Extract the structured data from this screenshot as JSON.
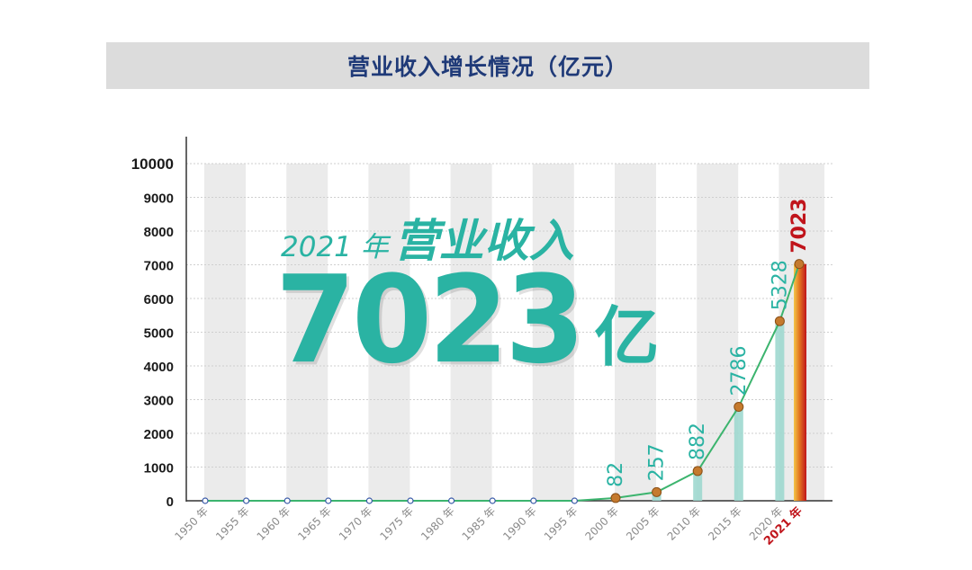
{
  "title": "营业收入增长情况（亿元）",
  "headline": {
    "year_text": "2021 年",
    "label": "营业收入",
    "value": "7023",
    "unit": "亿"
  },
  "colors": {
    "accent": "#2ab3a3",
    "title_bg": "#dcdcdc",
    "title_text": "#1f3a78",
    "highlight": "#c0141b",
    "line": "#3cb46e",
    "marker": "#c57a2e"
  },
  "chart_data": {
    "type": "line",
    "title": "营业收入增长情况（亿元）",
    "xlabel": "",
    "ylabel": "",
    "categories": [
      "1950 年",
      "1955 年",
      "1960 年",
      "1965 年",
      "1970 年",
      "1975 年",
      "1980 年",
      "1985 年",
      "1990 年",
      "1995 年",
      "2000 年",
      "2005 年",
      "2010 年",
      "2015 年",
      "2020 年",
      "2021 年"
    ],
    "values": [
      0,
      0,
      0,
      0,
      0,
      0,
      0,
      0,
      0,
      0,
      82,
      257,
      882,
      2786,
      5328,
      7023
    ],
    "labels": [
      "",
      "",
      "",
      "",
      "",
      "",
      "",
      "",
      "",
      "",
      "82",
      "257",
      "882",
      "2786",
      "5328",
      "7023"
    ],
    "ylim": [
      0,
      10000
    ],
    "yticks": [
      "0",
      "1000",
      "2000",
      "3000",
      "4000",
      "5000",
      "6000",
      "7000",
      "8000",
      "9000",
      "10000"
    ],
    "grid": true,
    "highlight_category": "2021 年"
  }
}
